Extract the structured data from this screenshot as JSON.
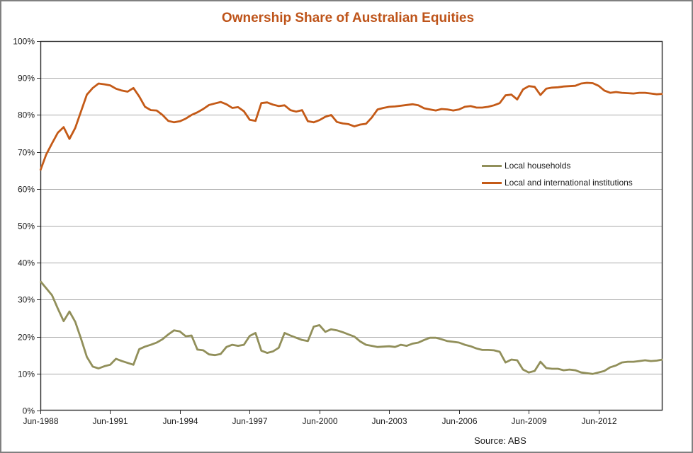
{
  "title": "Ownership Share of Australian Equities",
  "source_note": "Source: ABS",
  "colors": {
    "title": "#be541a",
    "households_line": "#918f5a",
    "institutions_line": "#c45a17",
    "gridline": "#a9a9a9",
    "axis": "#2b2b2b",
    "text": "#1a1a1a",
    "frame_border": "#808080",
    "background": "#ffffff"
  },
  "legend": {
    "items": [
      {
        "label": "Local households"
      },
      {
        "label": "Local and international institutions"
      }
    ]
  },
  "chart_data": {
    "type": "line",
    "title": "Ownership Share of Australian Equities",
    "x_start": "Jun-1988",
    "x_frequency": "quarterly",
    "x_tick_labels": [
      "Jun-1988",
      "Jun-1991",
      "Jun-1994",
      "Jun-1997",
      "Jun-2000",
      "Jun-2003",
      "Jun-2006",
      "Jun-2009",
      "Jun-2012"
    ],
    "x_ticks_every_n_points": 12,
    "ylim": [
      0,
      100
    ],
    "y_tick_step": 10,
    "y_tick_suffix": "%",
    "grid": "horizontal",
    "legend_position": "inside-upper-right",
    "series": [
      {
        "name": "Local households",
        "color": "#918f5a",
        "values": [
          35.0,
          33.1,
          31.2,
          27.6,
          24.2,
          26.8,
          24.0,
          19.4,
          14.5,
          11.9,
          11.4,
          12.0,
          12.4,
          14.0,
          13.4,
          12.9,
          12.4,
          16.6,
          17.3,
          17.8,
          18.4,
          19.3,
          20.6,
          21.7,
          21.4,
          20.1,
          20.3,
          16.5,
          16.3,
          15.2,
          15.0,
          15.3,
          17.2,
          17.8,
          17.5,
          17.8,
          20.2,
          21.0,
          16.2,
          15.6,
          16.0,
          17.0,
          21.0,
          20.3,
          19.7,
          19.1,
          18.8,
          22.7,
          23.1,
          21.3,
          22.0,
          21.7,
          21.2,
          20.6,
          20.0,
          18.7,
          17.8,
          17.5,
          17.2,
          17.3,
          17.4,
          17.2,
          17.8,
          17.5,
          18.1,
          18.4,
          19.1,
          19.7,
          19.7,
          19.3,
          18.8,
          18.6,
          18.4,
          17.8,
          17.4,
          16.8,
          16.4,
          16.4,
          16.3,
          15.9,
          13.0,
          13.8,
          13.6,
          11.1,
          10.3,
          10.7,
          13.2,
          11.5,
          11.3,
          11.3,
          10.9,
          11.1,
          10.9,
          10.3,
          10.1,
          9.9,
          10.3,
          10.7,
          11.7,
          12.2,
          13.0,
          13.2,
          13.2,
          13.4,
          13.6,
          13.4,
          13.5,
          13.8
        ]
      },
      {
        "name": "Local and international institutions",
        "color": "#c45a17",
        "values": [
          65.0,
          69.3,
          72.3,
          75.2,
          76.7,
          73.5,
          76.5,
          81.0,
          85.5,
          87.3,
          88.5,
          88.3,
          88.0,
          87.1,
          86.6,
          86.3,
          87.3,
          85.0,
          82.2,
          81.3,
          81.2,
          80.0,
          78.4,
          78.0,
          78.3,
          79.0,
          80.0,
          80.7,
          81.6,
          82.7,
          83.1,
          83.5,
          82.9,
          81.9,
          82.1,
          81.0,
          78.7,
          78.4,
          83.2,
          83.4,
          82.8,
          82.4,
          82.6,
          81.3,
          80.9,
          81.3,
          78.3,
          78.0,
          78.6,
          79.5,
          80.0,
          78.1,
          77.7,
          77.5,
          76.9,
          77.4,
          77.6,
          79.3,
          81.5,
          81.9,
          82.2,
          82.3,
          82.5,
          82.7,
          82.9,
          82.6,
          81.8,
          81.5,
          81.2,
          81.6,
          81.5,
          81.2,
          81.5,
          82.2,
          82.4,
          82.0,
          82.0,
          82.2,
          82.6,
          83.2,
          85.3,
          85.5,
          84.2,
          86.9,
          87.8,
          87.6,
          85.4,
          87.1,
          87.4,
          87.5,
          87.7,
          87.8,
          87.9,
          88.5,
          88.7,
          88.6,
          87.9,
          86.6,
          86.0,
          86.2,
          86.0,
          85.9,
          85.8,
          86.0,
          86.0,
          85.8,
          85.6,
          85.7
        ]
      }
    ]
  }
}
